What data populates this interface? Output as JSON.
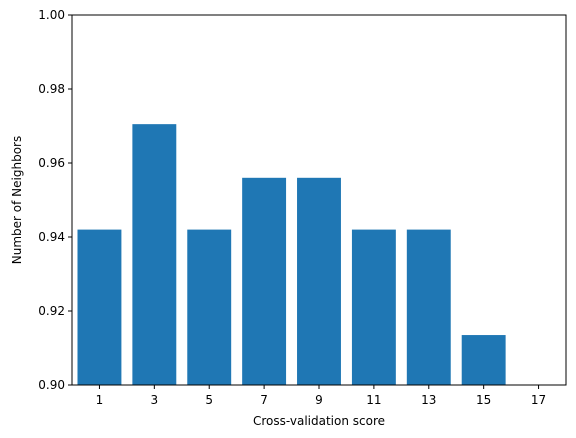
{
  "chart_data": {
    "type": "bar",
    "title": "",
    "xlabel": "Cross-validation score",
    "ylabel": "Number of Neighbors",
    "x": [
      1,
      3,
      5,
      7,
      9,
      11,
      13,
      15,
      17
    ],
    "values": [
      0.942,
      0.9705,
      0.942,
      0.956,
      0.956,
      0.942,
      0.942,
      0.9135,
      0.9
    ],
    "xlim": [
      0,
      18
    ],
    "ylim": [
      0.9,
      1.0
    ],
    "yticks": [
      0.9,
      0.92,
      0.94,
      0.96,
      0.98,
      1.0
    ],
    "ytick_labels": [
      "0.90",
      "0.92",
      "0.94",
      "0.96",
      "0.98",
      "1.00"
    ],
    "xticks": [
      1,
      3,
      5,
      7,
      9,
      11,
      13,
      15,
      17
    ],
    "xtick_labels": [
      "1",
      "3",
      "5",
      "7",
      "9",
      "11",
      "13",
      "15",
      "17"
    ],
    "bar_color": "#1f77b4",
    "grid": false,
    "legend": "none"
  }
}
